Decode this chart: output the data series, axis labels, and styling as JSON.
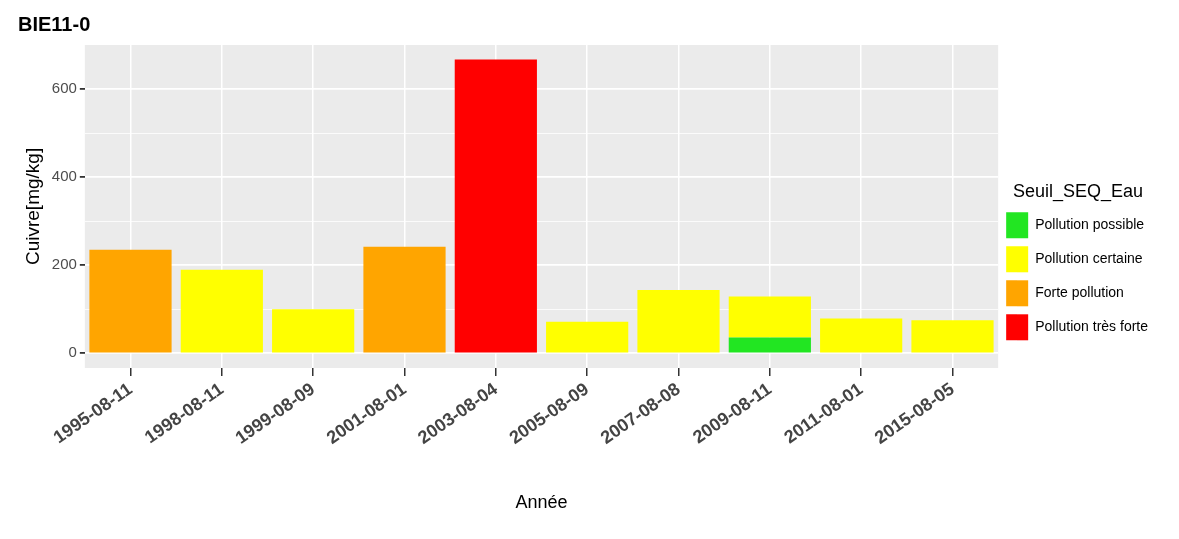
{
  "chart_data": {
    "type": "bar",
    "title": "BIE11-0",
    "xlabel": "Année",
    "ylabel": "Cuivre[mg/kg]",
    "legend_title": "Seuil_SEQ_Eau",
    "categories": [
      "1995-08-11",
      "1998-08-11",
      "1999-08-09",
      "2001-08-01",
      "2003-08-04",
      "2005-08-09",
      "2007-08-08",
      "2009-08-11",
      "2011-08-01",
      "2015-08-05"
    ],
    "stacked": true,
    "series": [
      {
        "name": "Pollution possible",
        "color": "#22e622",
        "values": [
          null,
          null,
          null,
          null,
          null,
          null,
          null,
          36,
          null,
          null
        ]
      },
      {
        "name": "Pollution certaine",
        "color": "#ffff00",
        "values": [
          null,
          190,
          100,
          null,
          null,
          72,
          144,
          93,
          79,
          75
        ]
      },
      {
        "name": "Forte pollution",
        "color": "#ffa500",
        "values": [
          235,
          null,
          null,
          242,
          null,
          null,
          null,
          null,
          null,
          null
        ]
      },
      {
        "name": "Pollution très forte",
        "color": "#ff0000",
        "values": [
          null,
          null,
          null,
          null,
          667,
          null,
          null,
          null,
          null,
          null
        ]
      }
    ],
    "ylim": [
      -33,
      700
    ],
    "yticks": [
      0,
      {
        "value": 100,
        "label": null
      },
      200,
      {
        "value": 300,
        "label": null
      },
      400,
      {
        "value": 500,
        "label": null
      },
      600
    ],
    "grid": true,
    "legend": "right"
  }
}
